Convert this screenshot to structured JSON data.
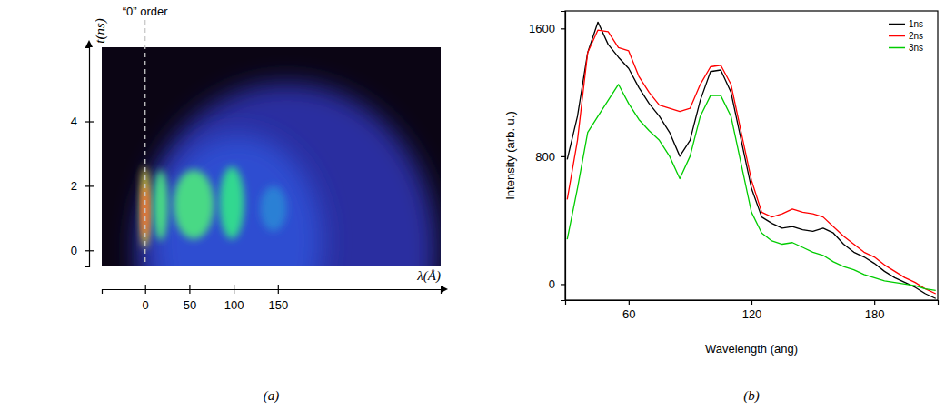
{
  "chart_data": [
    {
      "type": "streak_image",
      "caption": "(a)",
      "x_label": "λ(Å)",
      "y_label": "t(ns)",
      "annotation": {
        "text": "“0” order",
        "x": 0
      },
      "xlim": [
        -49,
        334
      ],
      "ylim": [
        -0.5,
        6.3
      ],
      "xticks": [
        0,
        50,
        100,
        150
      ],
      "yticks": [
        0,
        2,
        4
      ],
      "features": [
        {
          "lambda": [
            -10,
            330
          ],
          "t": [
            -5.2,
            5.2
          ],
          "intensity": 0.3
        },
        {
          "lambda": [
            10,
            200
          ],
          "t": [
            -3,
            3.6
          ],
          "intensity": 0.42
        },
        {
          "lambda": [
            130,
            160
          ],
          "t": [
            0.6,
            2.0
          ],
          "intensity": 0.5
        },
        {
          "lambda": [
            84,
            112
          ],
          "t": [
            0.35,
            2.6
          ],
          "intensity": 0.7
        },
        {
          "lambda": [
            32,
            78
          ],
          "t": [
            0.35,
            2.5
          ],
          "intensity": 0.72
        },
        {
          "lambda": [
            9,
            26
          ],
          "t": [
            0.3,
            2.5
          ],
          "intensity": 0.72
        },
        {
          "lambda": [
            -5,
            5
          ],
          "t": [
            0.05,
            2.6
          ],
          "intensity": 0.85
        },
        {
          "lambda": [
            -3,
            3
          ],
          "t": [
            0.4,
            2.0
          ],
          "intensity": 1.0
        }
      ]
    },
    {
      "type": "line",
      "caption": "(b)",
      "x_label": "Wavelength (ang)",
      "y_label": "Intensity (arb. u.)",
      "x": [
        30,
        35,
        40,
        45,
        50,
        55,
        60,
        65,
        70,
        75,
        80,
        85,
        90,
        95,
        100,
        105,
        110,
        115,
        120,
        125,
        130,
        135,
        140,
        145,
        150,
        155,
        160,
        165,
        170,
        175,
        180,
        185,
        190,
        195,
        200,
        205,
        210
      ],
      "series": [
        {
          "name": "1ns",
          "color": "#000000",
          "values": [
            780,
            1050,
            1450,
            1640,
            1500,
            1420,
            1350,
            1230,
            1130,
            1050,
            950,
            800,
            900,
            1150,
            1330,
            1340,
            1200,
            900,
            600,
            420,
            380,
            350,
            360,
            340,
            330,
            350,
            320,
            250,
            200,
            170,
            130,
            80,
            40,
            10,
            -20,
            -60,
            -90
          ]
        },
        {
          "name": "2ns",
          "color": "#ff0000",
          "values": [
            530,
            900,
            1450,
            1590,
            1580,
            1480,
            1460,
            1300,
            1200,
            1120,
            1100,
            1080,
            1100,
            1250,
            1360,
            1370,
            1250,
            950,
            650,
            450,
            420,
            440,
            470,
            450,
            440,
            420,
            360,
            300,
            250,
            200,
            170,
            120,
            80,
            40,
            10,
            -30,
            -60
          ]
        },
        {
          "name": "3ns",
          "color": "#00cc00",
          "values": [
            280,
            600,
            950,
            1050,
            1150,
            1250,
            1130,
            1030,
            960,
            900,
            800,
            660,
            800,
            1050,
            1180,
            1180,
            1050,
            750,
            450,
            320,
            270,
            250,
            260,
            230,
            200,
            180,
            140,
            110,
            90,
            60,
            40,
            20,
            10,
            0,
            -10,
            -30,
            -40
          ]
        }
      ],
      "xlim": [
        29,
        211
      ],
      "ylim": [
        -100,
        1710
      ],
      "xticks": [
        60,
        120,
        180
      ],
      "yticks": [
        0,
        800,
        1600
      ],
      "legend": "upper right"
    }
  ]
}
